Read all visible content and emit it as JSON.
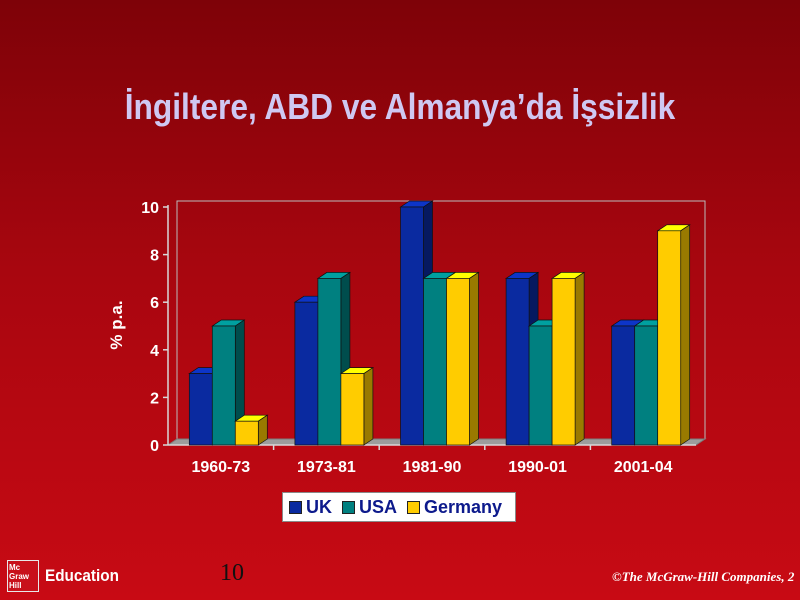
{
  "slide": {
    "title": "İngiltere, ABD ve Almanya’da İşsizlik",
    "page_number": "10",
    "copyright": "©The McGraw-Hill Companies, 2",
    "logo": {
      "box_lines": [
        "Mc",
        "Graw",
        "Hill"
      ],
      "word": "Education"
    }
  },
  "chart_data": {
    "type": "bar",
    "title": "",
    "xlabel": "",
    "ylabel": "% p.a.",
    "ylim": [
      0,
      10
    ],
    "yticks": [
      0,
      2,
      4,
      6,
      8,
      10
    ],
    "grid": false,
    "legend_position": "bottom",
    "categories": [
      "1960-73",
      "1973-81",
      "1981-90",
      "1990-01",
      "2001-04"
    ],
    "series": [
      {
        "name": "UK",
        "color": "#0a2aa0",
        "values": [
          3,
          6,
          10,
          7,
          5
        ]
      },
      {
        "name": "USA",
        "color": "#008080",
        "values": [
          5,
          7,
          7,
          5,
          5
        ]
      },
      {
        "name": "Germany",
        "color": "#ffcc00",
        "values": [
          1,
          3,
          7,
          7,
          9
        ]
      }
    ]
  }
}
